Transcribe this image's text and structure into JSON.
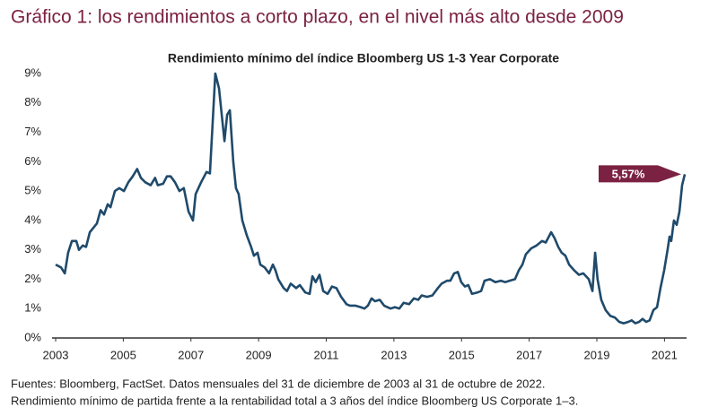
{
  "chart_data": {
    "type": "line",
    "title": "Gráfico 1: los rendimientos a corto plazo, en el nivel más alto desde 2009",
    "subtitle": "Rendimiento mínimo del índice Bloomberg US 1-3 Year Corporate",
    "notes": [
      "Fuentes: Bloomberg, FactSet. Datos mensuales del 31 de diciembre de 2003 al 31 de octubre de 2022.",
      "Rendimiento mínimo de partida frente a la rentabilidad total a 3 años del índice Bloomberg US Corporate 1–3."
    ],
    "x": [
      2003.0,
      2003.16,
      2003.27,
      2003.37,
      2003.48,
      2003.61,
      2003.69,
      2003.8,
      2003.9,
      2004.01,
      2004.22,
      2004.33,
      2004.43,
      2004.54,
      2004.62,
      2004.75,
      2004.88,
      2005.02,
      2005.15,
      2005.28,
      2005.41,
      2005.52,
      2005.65,
      2005.81,
      2005.94,
      2006.02,
      2006.18,
      2006.29,
      2006.4,
      2006.53,
      2006.66,
      2006.79,
      2006.93,
      2007.06,
      2007.14,
      2007.3,
      2007.46,
      2007.56,
      2007.72,
      2007.83,
      2007.99,
      2008.07,
      2008.15,
      2008.25,
      2008.33,
      2008.41,
      2008.52,
      2008.65,
      2008.78,
      2008.86,
      2008.97,
      2009.05,
      2009.18,
      2009.31,
      2009.42,
      2009.5,
      2009.58,
      2009.74,
      2009.84,
      2009.95,
      2010.11,
      2010.22,
      2010.38,
      2010.51,
      2010.59,
      2010.69,
      2010.8,
      2010.91,
      2011.04,
      2011.17,
      2011.3,
      2011.44,
      2011.6,
      2011.7,
      2011.86,
      2012.02,
      2012.13,
      2012.23,
      2012.34,
      2012.44,
      2012.58,
      2012.71,
      2012.9,
      2013.03,
      2013.16,
      2013.29,
      2013.45,
      2013.59,
      2013.72,
      2013.82,
      2013.98,
      2014.14,
      2014.3,
      2014.41,
      2014.57,
      2014.67,
      2014.78,
      2014.89,
      2014.99,
      2015.1,
      2015.2,
      2015.31,
      2015.47,
      2015.58,
      2015.68,
      2015.84,
      2016.0,
      2016.16,
      2016.29,
      2016.42,
      2016.58,
      2016.69,
      2016.8,
      2016.9,
      2017.06,
      2017.22,
      2017.38,
      2017.49,
      2017.65,
      2017.75,
      2017.86,
      2017.96,
      2018.07,
      2018.18,
      2018.33,
      2018.47,
      2018.6,
      2018.76,
      2018.87,
      2018.95,
      2019.02,
      2019.13,
      2019.26,
      2019.4,
      2019.53,
      2019.66,
      2019.79,
      2019.93,
      2020.03,
      2020.14,
      2020.25,
      2020.35,
      2020.46,
      2020.56,
      2020.67,
      2020.78,
      2020.88,
      2020.99,
      2021.09,
      2021.15,
      2021.2,
      2021.28,
      2021.36,
      2021.44,
      2021.52,
      2021.6
    ],
    "series": [
      {
        "name": "Rendimiento mínimo",
        "color": "#1f4a6b",
        "values": [
          2.5,
          2.4,
          2.2,
          2.9,
          3.3,
          3.3,
          3.0,
          3.15,
          3.1,
          3.6,
          3.9,
          4.35,
          4.2,
          4.55,
          4.45,
          5.0,
          5.1,
          5.0,
          5.3,
          5.5,
          5.75,
          5.45,
          5.3,
          5.2,
          5.45,
          5.2,
          5.25,
          5.5,
          5.5,
          5.3,
          5.0,
          5.1,
          4.3,
          4.0,
          4.9,
          5.3,
          5.65,
          5.6,
          9.0,
          8.5,
          6.7,
          7.6,
          7.75,
          6.0,
          5.1,
          4.9,
          4.0,
          3.5,
          3.1,
          2.8,
          2.9,
          2.5,
          2.4,
          2.2,
          2.5,
          2.3,
          2.0,
          1.7,
          1.6,
          1.85,
          1.7,
          1.8,
          1.55,
          1.5,
          2.1,
          1.9,
          2.15,
          1.6,
          1.5,
          1.75,
          1.7,
          1.4,
          1.15,
          1.1,
          1.1,
          1.05,
          1.0,
          1.1,
          1.35,
          1.25,
          1.3,
          1.1,
          1.0,
          1.05,
          1.0,
          1.2,
          1.15,
          1.35,
          1.3,
          1.45,
          1.4,
          1.45,
          1.7,
          1.85,
          1.95,
          1.95,
          2.2,
          2.25,
          1.9,
          1.75,
          1.8,
          1.5,
          1.55,
          1.6,
          1.95,
          2.0,
          1.9,
          1.95,
          1.9,
          1.95,
          2.0,
          2.3,
          2.5,
          2.85,
          3.05,
          3.15,
          3.3,
          3.25,
          3.6,
          3.4,
          3.1,
          2.9,
          2.8,
          2.5,
          2.3,
          2.15,
          2.2,
          2.0,
          1.6,
          2.9,
          2.0,
          1.3,
          0.95,
          0.75,
          0.7,
          0.55,
          0.5,
          0.55,
          0.6,
          0.5,
          0.55,
          0.65,
          0.55,
          0.6,
          0.95,
          1.05,
          1.7,
          2.3,
          3.0,
          3.45,
          3.3,
          4.0,
          3.85,
          4.3,
          5.2,
          5.57
        ]
      }
    ],
    "annotations": [
      {
        "text": "5,57%",
        "x": 2021.6,
        "y": 5.57,
        "color": "#7b2242"
      }
    ],
    "xlim": [
      2003,
      2021.6
    ],
    "xticks": [
      2003,
      2005,
      2007,
      2009,
      2011,
      2013,
      2015,
      2017,
      2019,
      2021
    ],
    "ylim": [
      0,
      9
    ],
    "yticks": [
      {
        "value": 0,
        "label": "0%"
      },
      {
        "value": 1,
        "label": "1%"
      },
      {
        "value": 2,
        "label": "2%"
      },
      {
        "value": 3,
        "label": "3%"
      },
      {
        "value": 4,
        "label": "4%"
      },
      {
        "value": 5,
        "label": "5%"
      },
      {
        "value": 6,
        "label": "6%"
      },
      {
        "value": 7,
        "label": "7%"
      },
      {
        "value": 8,
        "label": "8%"
      },
      {
        "value": 9,
        "label": "9%"
      }
    ],
    "grid": false
  }
}
